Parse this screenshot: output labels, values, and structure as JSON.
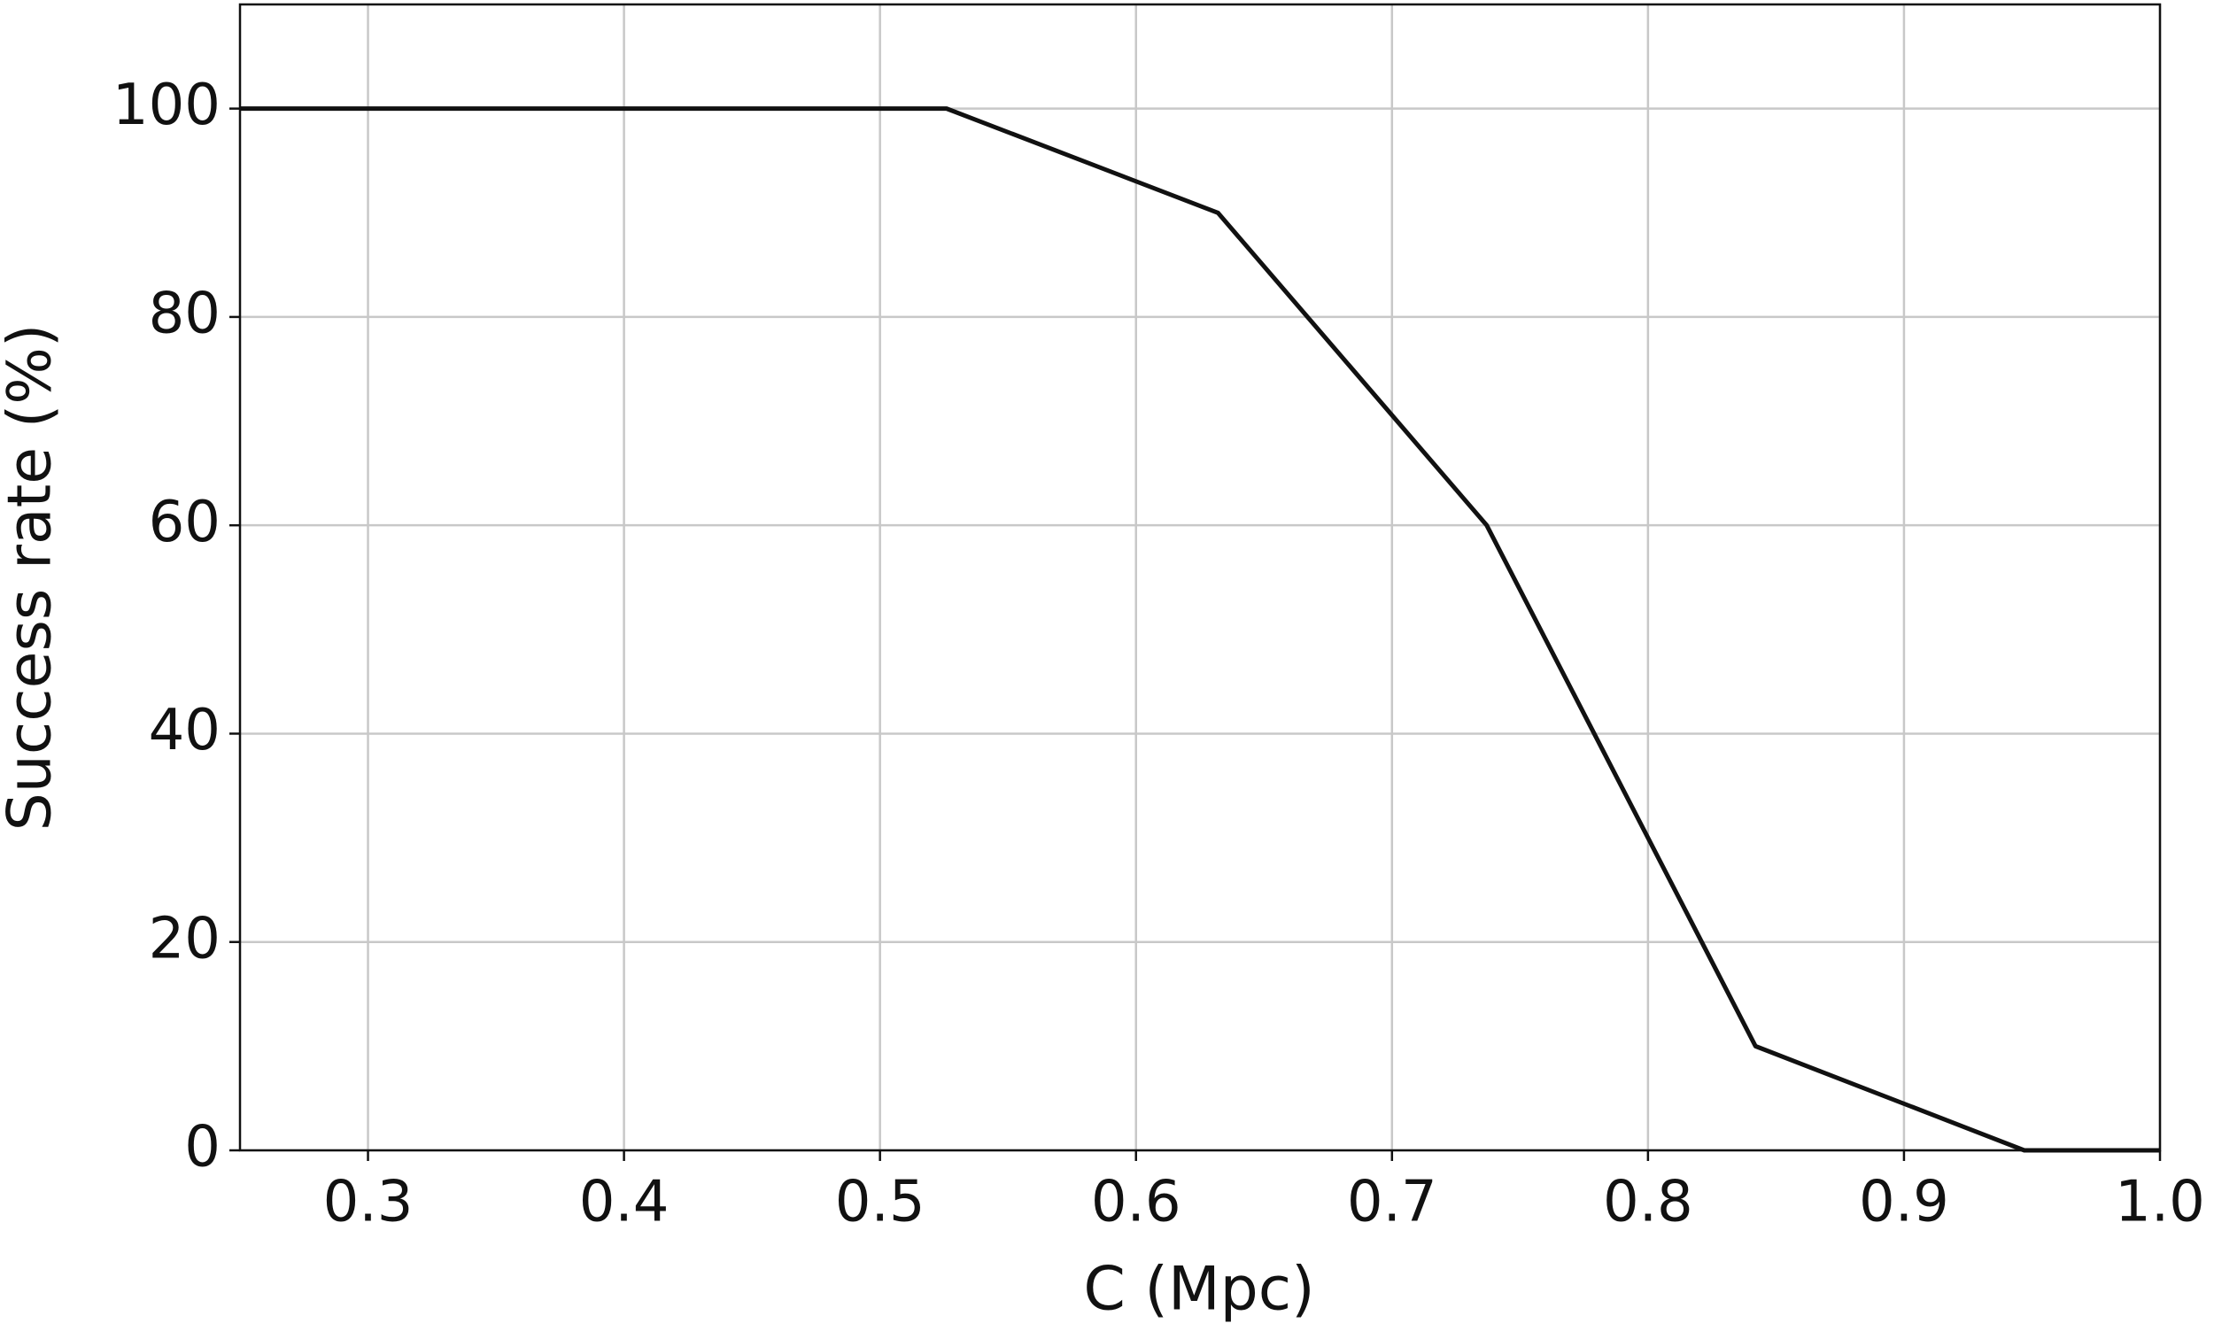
{
  "chart_data": {
    "type": "line",
    "x_label": "C (Mpc)",
    "y_label": "Success rate (%)",
    "x": [
      0.25,
      0.526,
      0.632,
      0.737,
      0.842,
      0.947,
      1.0
    ],
    "series": [
      {
        "name": "Success rate",
        "color": "#111111",
        "values": [
          100,
          100,
          90,
          60,
          10,
          0,
          0
        ]
      }
    ],
    "xlim": [
      0.25,
      1.0
    ],
    "ylim": [
      0,
      110
    ],
    "xticks": [
      0.3,
      0.4,
      0.5,
      0.6,
      0.7,
      0.8,
      0.9,
      {
        "value": 1.0,
        "label": "1.0"
      }
    ],
    "yticks": [
      0,
      20,
      40,
      60,
      80,
      100
    ],
    "grid": true
  }
}
